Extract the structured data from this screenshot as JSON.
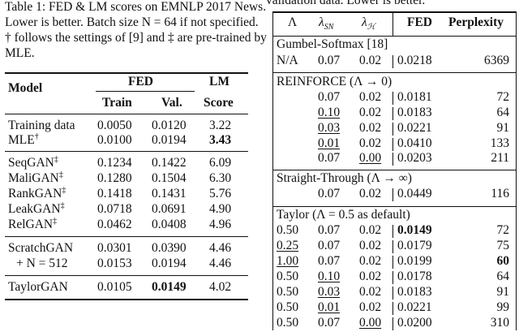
{
  "left_table": {
    "caption": [
      "Table 1: FED & LM scores on EMNLP 2017 News.",
      "Lower is better. Batch size N = 64 if not specified.",
      "† follows the settings of [9] and ‡ are pre-trained by",
      "MLE."
    ],
    "headers": {
      "model": "Model",
      "fed": "FED",
      "lm": "LM",
      "train": "Train",
      "val": "Val.",
      "score": "Score"
    },
    "rows": [
      {
        "model": "Training data",
        "sup": "",
        "train": "0.0050",
        "val": "0.0120",
        "lm": "3.22"
      },
      {
        "model": "MLE",
        "sup": "†",
        "train": "0.0100",
        "val": "0.0194",
        "lm": "3.43"
      },
      {
        "model": "SeqGAN",
        "sup": "‡",
        "train": "0.1234",
        "val": "0.1422",
        "lm": "6.09"
      },
      {
        "model": "MaliGAN",
        "sup": "‡",
        "train": "0.1280",
        "val": "0.1504",
        "lm": "6.30"
      },
      {
        "model": "RankGAN",
        "sup": "‡",
        "train": "0.1418",
        "val": "0.1431",
        "lm": "5.76"
      },
      {
        "model": "LeakGAN",
        "sup": "‡",
        "train": "0.0718",
        "val": "0.0691",
        "lm": "4.90"
      },
      {
        "model": "RelGAN",
        "sup": "‡",
        "train": "0.0462",
        "val": "0.0408",
        "lm": "4.96"
      },
      {
        "model": "ScratchGAN",
        "sup": "",
        "train": "0.0301",
        "val": "0.0390",
        "lm": "4.46"
      },
      {
        "model": "+ N = 512",
        "sup": "",
        "train": "0.0153",
        "val": "0.0194",
        "lm": "4.46"
      },
      {
        "model": "TaylorGAN",
        "sup": "",
        "train": "0.0105",
        "val": "0.0149",
        "lm": "4.02"
      }
    ]
  },
  "right_table": {
    "caption_fragment": "validation data. Lower is better.",
    "headers": {
      "lambda": "Λ",
      "lambda_sn": "λ",
      "lambda_sn_sub": "SN",
      "lambda_h": "λ",
      "lambda_h_sub": "ℋ",
      "fed": "FED",
      "perplexity": "Perplexity"
    },
    "sections": [
      {
        "title": "Gumbel-Softmax [18]",
        "rows": [
          {
            "lambda": "N/A",
            "lsn": "0.07",
            "lh": "0.02",
            "fed": "0.0218",
            "ppl": "6369"
          }
        ]
      },
      {
        "title": "REINFORCE (Λ → 0)",
        "rows": [
          {
            "lambda": "",
            "lsn": "0.07",
            "lh": "0.02",
            "fed": "0.0181",
            "ppl": "72"
          },
          {
            "lambda": "",
            "lsn": "0.10",
            "lh": "0.02",
            "fed": "0.0183",
            "ppl": "64"
          },
          {
            "lambda": "",
            "lsn": "0.03",
            "lh": "0.02",
            "fed": "0.0221",
            "ppl": "91"
          },
          {
            "lambda": "",
            "lsn": "0.01",
            "lh": "0.02",
            "fed": "0.0410",
            "ppl": "133"
          },
          {
            "lambda": "",
            "lsn": "0.07",
            "lh": "0.00",
            "fed": "0.0203",
            "ppl": "211"
          }
        ]
      },
      {
        "title": "Straight-Through (Λ → ∞)",
        "rows": [
          {
            "lambda": "",
            "lsn": "0.07",
            "lh": "0.02",
            "fed": "0.0449",
            "ppl": "116"
          }
        ]
      },
      {
        "title": "Taylor (Λ = 0.5 as default)",
        "rows": [
          {
            "lambda": "0.50",
            "lsn": "0.07",
            "lh": "0.02",
            "fed": "0.0149",
            "ppl": "72"
          },
          {
            "lambda": "0.25",
            "lsn": "0.07",
            "lh": "0.02",
            "fed": "0.0179",
            "ppl": "75"
          },
          {
            "lambda": "1.00",
            "lsn": "0.07",
            "lh": "0.02",
            "fed": "0.0199",
            "ppl": "60"
          },
          {
            "lambda": "0.50",
            "lsn": "0.10",
            "lh": "0.02",
            "fed": "0.0178",
            "ppl": "64"
          },
          {
            "lambda": "0.50",
            "lsn": "0.03",
            "lh": "0.02",
            "fed": "0.0183",
            "ppl": "91"
          },
          {
            "lambda": "0.50",
            "lsn": "0.01",
            "lh": "0.02",
            "fed": "0.0221",
            "ppl": "99"
          },
          {
            "lambda": "0.50",
            "lsn": "0.07",
            "lh": "0.00",
            "fed": "0.0200",
            "ppl": "310"
          }
        ]
      }
    ]
  }
}
